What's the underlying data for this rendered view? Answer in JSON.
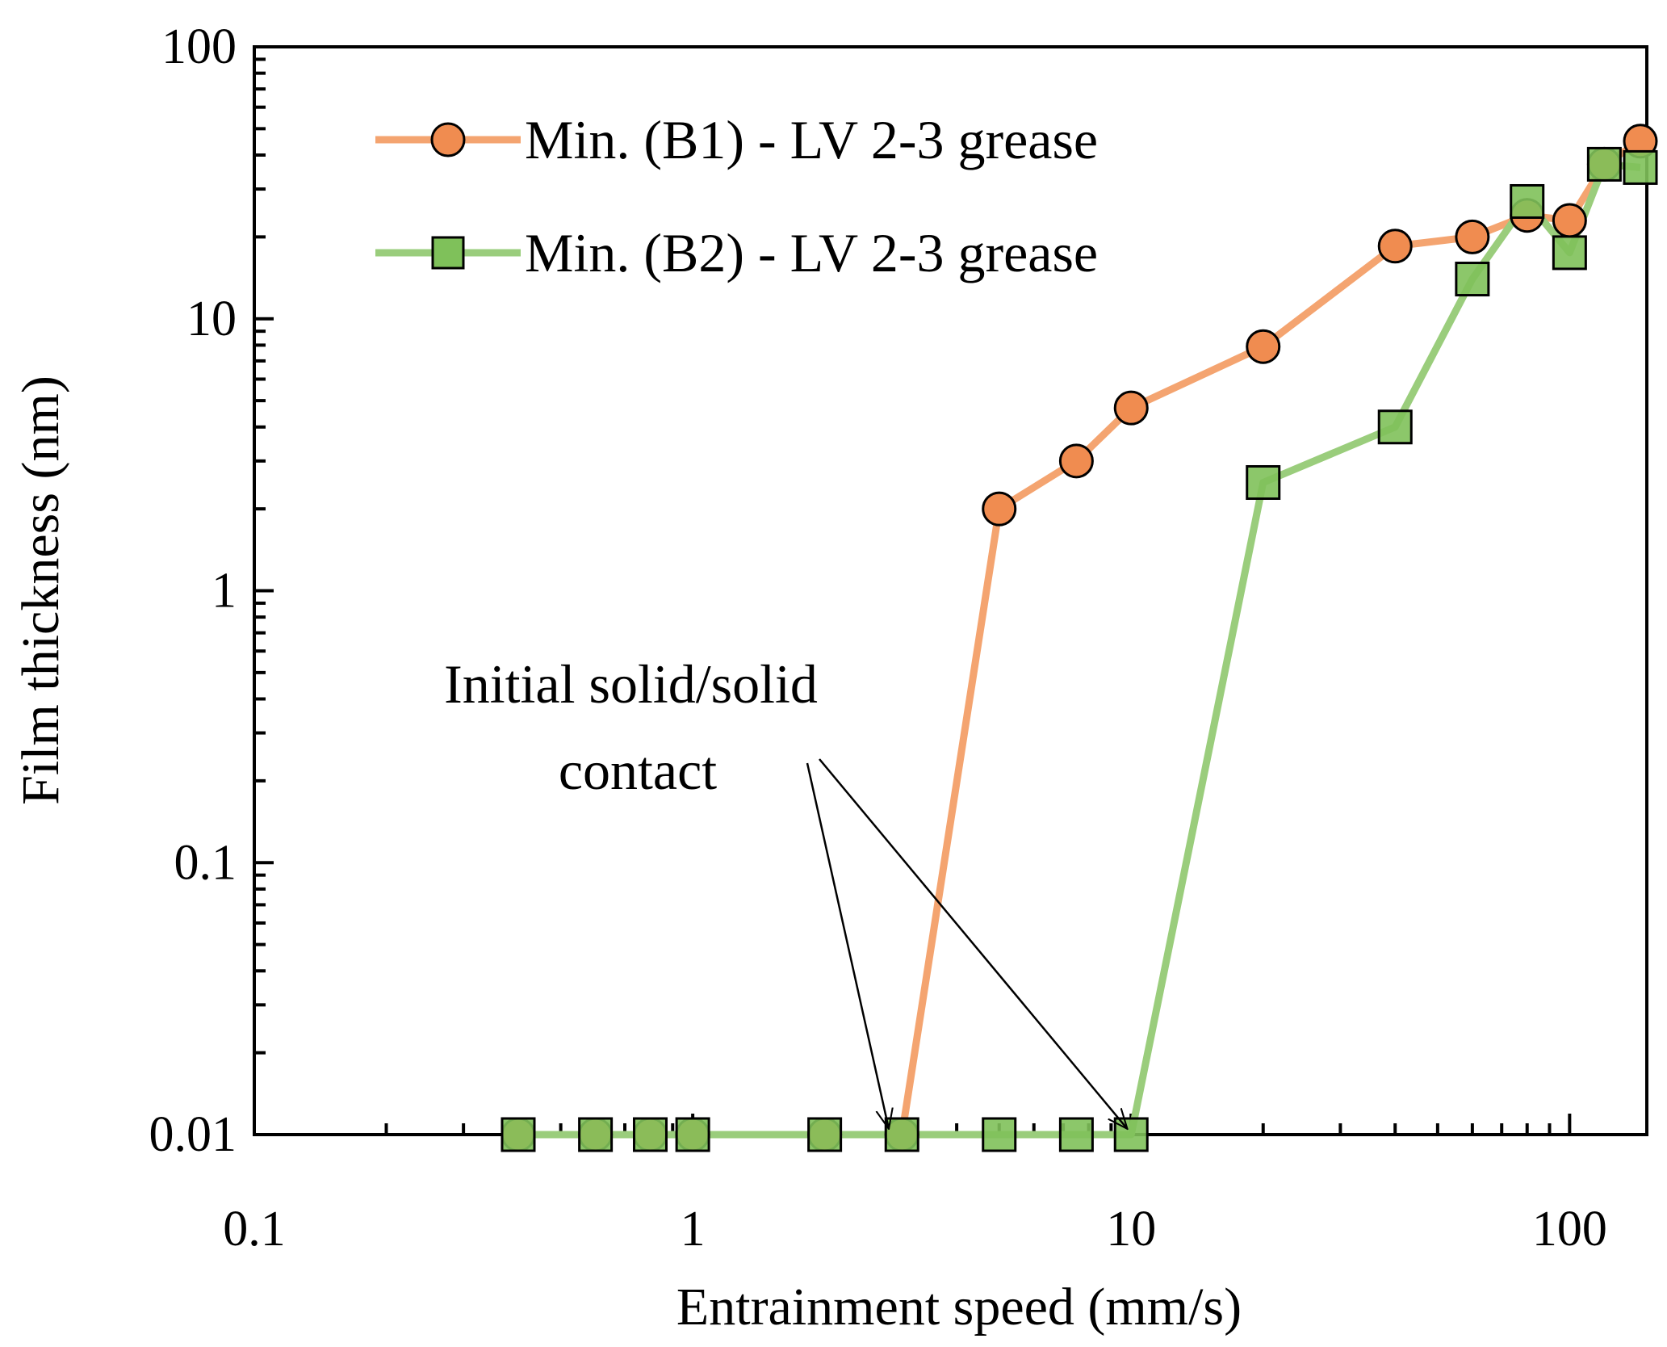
{
  "chart_data": {
    "type": "line",
    "title": "",
    "xlabel": "Entrainment speed (mm/s)",
    "ylabel": "Film thickness (nm)",
    "xscale": "log",
    "yscale": "log",
    "xlim": [
      0.1,
      150
    ],
    "ylim": [
      0.01,
      100
    ],
    "xticks": [
      0.1,
      1,
      10,
      100
    ],
    "xtick_labels": [
      "0.1",
      "1",
      "10",
      "100"
    ],
    "yticks": [
      0.01,
      0.1,
      1,
      10,
      100
    ],
    "ytick_labels": [
      "0.01",
      "0.1",
      "1",
      "10",
      "100"
    ],
    "grid": false,
    "legend_position": "top-left",
    "series": [
      {
        "name": "Min. (B1) - LV 2-3 grease",
        "marker": "circle",
        "line_color": "#f4a470",
        "marker_fill": "#f08c50",
        "x": [
          0.4,
          0.6,
          0.8,
          1,
          2,
          3,
          5,
          7.5,
          10,
          20,
          40,
          60,
          80,
          100,
          120,
          145
        ],
        "y": [
          0.01,
          0.01,
          0.01,
          0.01,
          0.01,
          0.01,
          2.0,
          3.0,
          4.7,
          7.9,
          18.5,
          20.0,
          24.0,
          23.0,
          37.0,
          45.0
        ]
      },
      {
        "name": "Min. (B2) - LV 2-3 grease",
        "marker": "square",
        "line_color": "#9acd7c",
        "marker_fill": "#7fc15a",
        "x": [
          0.4,
          0.6,
          0.8,
          1,
          2,
          3,
          5,
          7.5,
          10,
          20,
          40,
          60,
          80,
          100,
          120,
          145
        ],
        "y": [
          0.01,
          0.01,
          0.01,
          0.01,
          0.01,
          0.01,
          0.01,
          0.01,
          0.01,
          2.5,
          4.0,
          14.0,
          27.0,
          17.5,
          37.0,
          36.0
        ]
      }
    ],
    "annotations": [
      {
        "lines": [
          "Initial solid/solid",
          "contact"
        ],
        "arrows_to": [
          {
            "x": 2.8,
            "y": 0.0105
          },
          {
            "x": 9.8,
            "y": 0.0105
          }
        ]
      }
    ]
  }
}
